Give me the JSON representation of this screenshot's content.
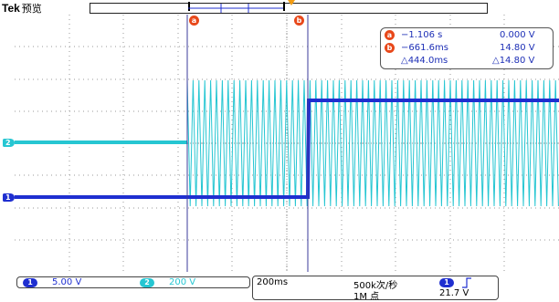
{
  "header": {
    "brand": "Tek",
    "mode": "预览"
  },
  "cursor_markers": {
    "a": "a",
    "b": "b"
  },
  "cursor_readout": {
    "a_time": "−1.106 s",
    "a_value": "0.000 V",
    "b_time": "−661.6ms",
    "b_value": "14.80 V",
    "delta_time": "△444.0ms",
    "delta_value": "△14.80 V"
  },
  "channels": [
    {
      "number": "1",
      "scale": "5.00 V",
      "color": "#1f2fd0"
    },
    {
      "number": "2",
      "scale": "200 V",
      "color": "#26c6d2"
    }
  ],
  "timebase": {
    "scale": "200ms",
    "sample_rate": "500k次/秒",
    "record_length": "1M 点"
  },
  "trigger": {
    "source": "1",
    "slope_icon": "rising-edge",
    "level": "21.7 V"
  },
  "colors": {
    "ch1": "#1f2fd0",
    "ch2": "#26c6d2",
    "cursor": "#3b3b9b",
    "marker": "#e8481a",
    "grid": "#9a9a9a"
  }
}
